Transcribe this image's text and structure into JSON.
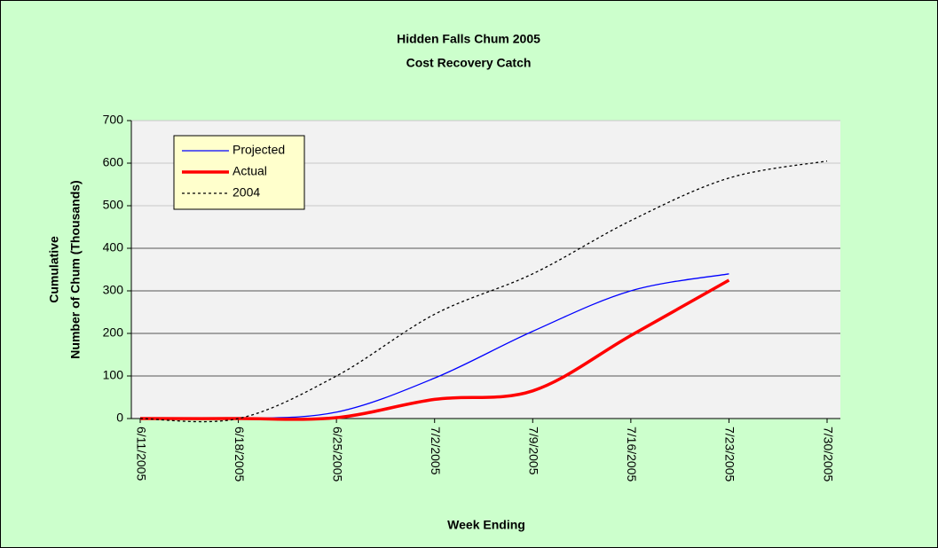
{
  "chart_data": {
    "type": "line",
    "title": "Hidden Falls Chum 2005",
    "subtitle": "Cost Recovery Catch",
    "ylabel": [
      "Cumulative",
      "Number of Chum (Thousands)"
    ],
    "xlabel": "Week Ending",
    "categories": [
      "6/11/2005",
      "6/18/2005",
      "6/25/2005",
      "7/2/2005",
      "7/9/2005",
      "7/16/2005",
      "7/23/2005",
      "7/30/2005"
    ],
    "series": [
      {
        "name": "Projected",
        "color": "#0000ff",
        "values": [
          0,
          0,
          15,
          95,
          205,
          300,
          340,
          null
        ]
      },
      {
        "name": "Actual",
        "color": "#ff0000",
        "values": [
          0,
          0,
          2,
          45,
          65,
          195,
          325,
          null
        ]
      },
      {
        "name": "2004",
        "color": "#000000",
        "values": [
          0,
          0,
          100,
          245,
          340,
          465,
          565,
          605
        ]
      }
    ],
    "ylim": [
      0,
      700
    ],
    "yticks": [
      0,
      100,
      200,
      300,
      400,
      500,
      600,
      700
    ],
    "grid": true,
    "smooth": true
  }
}
